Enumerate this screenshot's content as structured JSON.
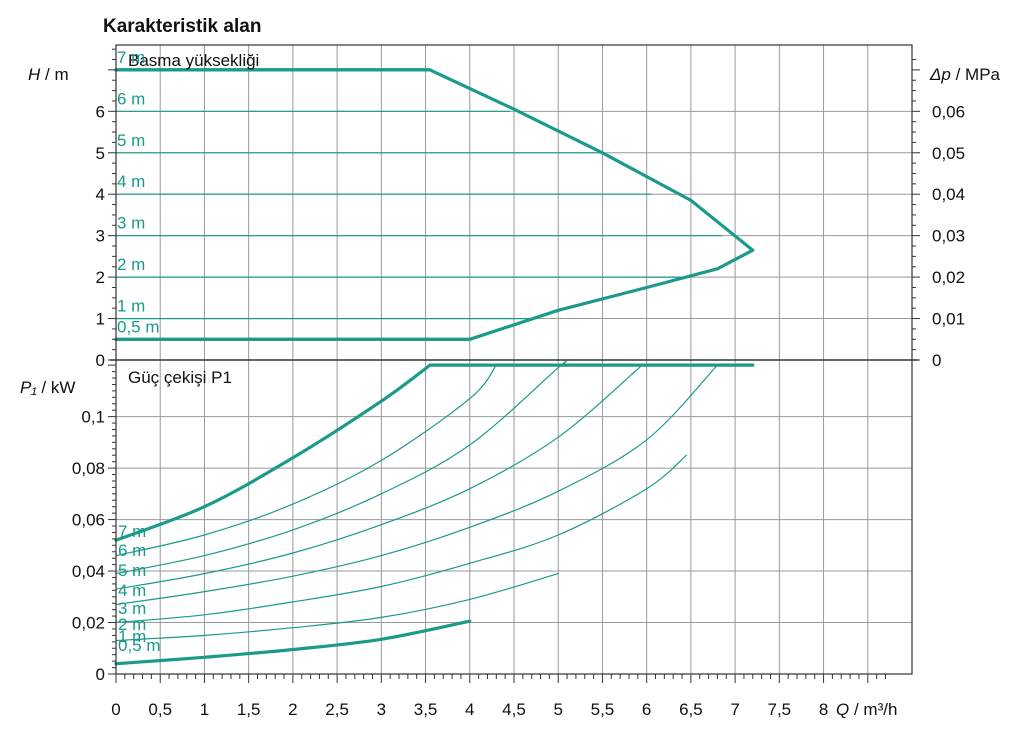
{
  "title": "Karakteristik alan",
  "colors": {
    "curve": "#1b9a8b",
    "grid": "#999999",
    "frame": "#333333",
    "text": "#111111"
  },
  "chart_data": [
    {
      "type": "line",
      "panel_label": "Basma yüksekliği",
      "ylabel_symbol": "H",
      "ylabel_unit": " / m",
      "y2label_symbol": "Δp",
      "y2label_unit": " / MPa",
      "xlim": [
        0,
        9
      ],
      "ylim": [
        0,
        7.6
      ],
      "y_ticks": [
        "0",
        "1",
        "2",
        "3",
        "4",
        "5",
        "6"
      ],
      "y_tick_values": [
        0,
        1,
        2,
        3,
        4,
        5,
        6
      ],
      "y2_ticks": [
        "0",
        "0,01",
        "0,02",
        "0,03",
        "0,04",
        "0,05",
        "0,06"
      ],
      "y2_tick_values": [
        0,
        0.01,
        0.02,
        0.03,
        0.04,
        0.05,
        0.06
      ],
      "envelope": {
        "x": [
          0,
          3.55,
          4.5,
          5.5,
          6.5,
          7.2,
          6.8,
          6.0,
          5.0,
          4.0,
          0
        ],
        "y": [
          7,
          7,
          6.05,
          5.0,
          3.85,
          2.65,
          2.2,
          1.75,
          1.2,
          0.5,
          0.5
        ]
      },
      "series": [
        {
          "name": "7 m",
          "x": [
            0,
            3.55
          ],
          "y": [
            7,
            7
          ]
        },
        {
          "name": "6 m",
          "x": [
            0,
            4.45
          ],
          "y": [
            6,
            6
          ]
        },
        {
          "name": "5 m",
          "x": [
            0,
            5.5
          ],
          "y": [
            5,
            5
          ]
        },
        {
          "name": "4 m",
          "x": [
            0,
            6.05
          ],
          "y": [
            4,
            4
          ]
        },
        {
          "name": "3 m",
          "x": [
            0,
            6.85
          ],
          "y": [
            3,
            3
          ]
        },
        {
          "name": "2 m",
          "x": [
            0,
            6.5
          ],
          "y": [
            2,
            2
          ]
        },
        {
          "name": "1 m",
          "x": [
            0,
            4.75
          ],
          "y": [
            1,
            1
          ]
        },
        {
          "name": "0,5 m",
          "x": [
            0,
            4.0
          ],
          "y": [
            0.5,
            0.5
          ]
        }
      ]
    },
    {
      "type": "line",
      "panel_label": "Güç çekişi P1",
      "ylabel_symbol": "P₁",
      "ylabel_unit": " / kW",
      "xlabel_symbol": "Q",
      "xlabel_unit": " / m³/h",
      "xlim": [
        0,
        9
      ],
      "ylim": [
        0,
        0.122
      ],
      "x_ticks": [
        "0",
        "0,5",
        "1",
        "1,5",
        "2",
        "2,5",
        "3",
        "3,5",
        "4",
        "4,5",
        "5",
        "5,5",
        "6",
        "6,5",
        "7",
        "7,5",
        "8"
      ],
      "x_tick_values": [
        0,
        0.5,
        1,
        1.5,
        2,
        2.5,
        3,
        3.5,
        4,
        4.5,
        5,
        5.5,
        6,
        6.5,
        7,
        7.5,
        8
      ],
      "y_ticks": [
        "0",
        "0,02",
        "0,04",
        "0,06",
        "0,08",
        "0,1"
      ],
      "y_tick_values": [
        0,
        0.02,
        0.04,
        0.06,
        0.08,
        0.1
      ],
      "max_line": {
        "x": [
          3.55,
          7.2
        ],
        "y": [
          0.12,
          0.12
        ]
      },
      "series": [
        {
          "name": "7 m",
          "x": [
            0,
            1,
            2,
            3,
            3.55
          ],
          "y": [
            0.052,
            0.065,
            0.084,
            0.106,
            0.12
          ]
        },
        {
          "name": "6 m",
          "x": [
            0,
            1,
            2,
            3,
            4,
            4.3
          ],
          "y": [
            0.046,
            0.054,
            0.066,
            0.083,
            0.107,
            0.12
          ]
        },
        {
          "name": "5 m",
          "x": [
            0,
            1,
            2,
            3,
            4,
            5,
            5.05
          ],
          "y": [
            0.039,
            0.046,
            0.056,
            0.07,
            0.089,
            0.119,
            0.12
          ]
        },
        {
          "name": "4 m",
          "x": [
            0,
            1,
            2,
            3,
            4,
            5,
            5.95
          ],
          "y": [
            0.033,
            0.039,
            0.047,
            0.058,
            0.072,
            0.092,
            0.12
          ]
        },
        {
          "name": "3 m",
          "x": [
            0,
            1,
            2,
            3,
            4,
            5,
            6,
            6.8
          ],
          "y": [
            0.027,
            0.032,
            0.038,
            0.046,
            0.057,
            0.071,
            0.091,
            0.12
          ]
        },
        {
          "name": "2 m",
          "x": [
            0,
            1,
            2,
            3,
            4,
            5,
            6,
            6.45
          ],
          "y": [
            0.02,
            0.023,
            0.028,
            0.034,
            0.043,
            0.054,
            0.072,
            0.085
          ]
        },
        {
          "name": "1 m",
          "x": [
            0,
            1,
            2,
            3,
            4,
            5
          ],
          "y": [
            0.013,
            0.015,
            0.018,
            0.022,
            0.029,
            0.039
          ]
        },
        {
          "name": "0,5 m",
          "x": [
            0,
            1,
            2,
            3,
            4
          ],
          "y": [
            0.004,
            0.0065,
            0.0095,
            0.0135,
            0.0205
          ]
        }
      ]
    }
  ]
}
